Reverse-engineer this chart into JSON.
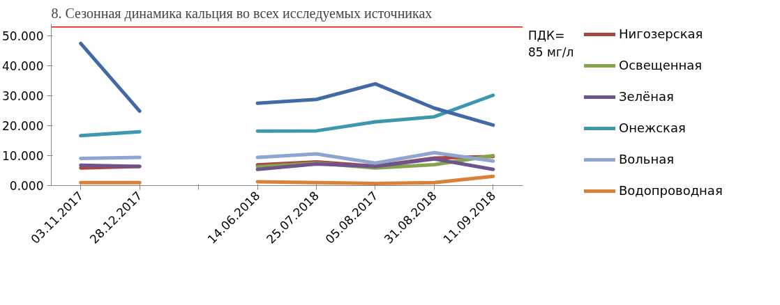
{
  "chart_data": {
    "type": "line",
    "title": "8. Сезонная динамика кальция во всех исследуемых источниках",
    "categories": [
      "03.11.2017",
      "28.12.2017",
      null,
      "14.06.2018",
      "25.07.2018",
      "05.08.2017",
      "31.08.2018",
      "11.09.2018"
    ],
    "series": [
      {
        "name": "Нигозерская",
        "color": "#a84643",
        "values": [
          5.9,
          6.4,
          null,
          6.9,
          7.9,
          6.5,
          9.2,
          9.7
        ]
      },
      {
        "name": "Освещенная",
        "color": "#86a44a",
        "values": [
          null,
          null,
          null,
          6.3,
          7.5,
          5.9,
          7.0,
          10.0
        ]
      },
      {
        "name": "Зелёная",
        "color": "#6e548d",
        "values": [
          6.8,
          6.4,
          null,
          5.4,
          7.2,
          6.4,
          8.9,
          5.4
        ]
      },
      {
        "name": "Онежская",
        "color": "#3d97ae",
        "values": [
          16.7,
          18.0,
          null,
          18.2,
          18.3,
          21.3,
          23.0,
          30.2
        ]
      },
      {
        "name": "Вольная",
        "color": "#8ea5cf",
        "values": [
          9.1,
          9.4,
          null,
          9.4,
          10.6,
          7.5,
          11.0,
          8.2
        ]
      },
      {
        "name": "Водопроводная",
        "color": "#db8136",
        "values": [
          1.0,
          1.0,
          null,
          1.3,
          1.0,
          0.7,
          1.0,
          3.1
        ]
      },
      {
        "color": "#4169a6",
        "values": [
          47.5,
          24.9,
          null,
          27.5,
          28.8,
          34.0,
          25.9,
          20.2
        ]
      }
    ],
    "ylim": [
      0,
      54
    ],
    "yticks": [
      {
        "value": 0,
        "label": "0.000"
      },
      {
        "value": 10,
        "label": "10.000"
      },
      {
        "value": 20,
        "label": "20.000"
      },
      {
        "value": 30,
        "label": "30.000"
      },
      {
        "value": 40,
        "label": "40.000"
      },
      {
        "value": 50,
        "label": "50.000"
      }
    ],
    "ref_lines": [
      {
        "axis": "y",
        "value": 53,
        "color": "#ff0000"
      }
    ],
    "annotations": [
      "ПДК=\n85 мг/л"
    ],
    "grid": false,
    "legend": "right"
  }
}
